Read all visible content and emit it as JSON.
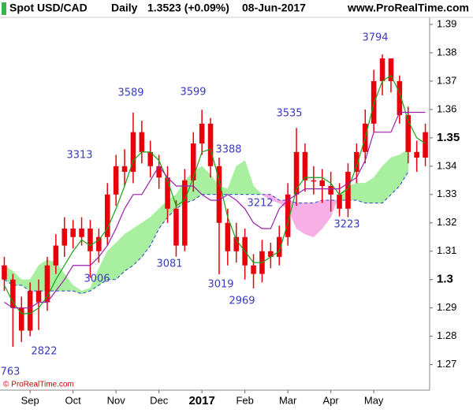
{
  "chart_data": {
    "type": "candlestick",
    "title": "Spot USD/CAD",
    "period": "Daily",
    "price": "1.3523 (+0.09%)",
    "date": "08-Jun-2017",
    "source": "www.ProRealTime.com",
    "footer": "© ProRealTime.com",
    "categories": [
      null,
      null,
      null,
      "Sep",
      null,
      null,
      null,
      null,
      "Oct",
      null,
      null,
      null,
      null,
      "Nov",
      null,
      null,
      null,
      null,
      "Dec",
      null,
      null,
      null,
      null,
      "2017",
      null,
      null,
      null,
      null,
      "Feb",
      null,
      null,
      null,
      null,
      "Mar",
      null,
      null,
      null,
      null,
      "Apr",
      null,
      null,
      null,
      null,
      "May",
      null,
      null,
      null,
      null,
      null,
      null
    ],
    "open": [
      1.305,
      1.3,
      1.29,
      1.282,
      1.296,
      1.292,
      1.305,
      1.312,
      1.318,
      1.315,
      1.318,
      1.31,
      1.315,
      1.33,
      1.34,
      1.338,
      1.352,
      1.345,
      1.34,
      1.336,
      1.325,
      1.312,
      1.335,
      1.348,
      1.355,
      1.34,
      1.32,
      1.31,
      1.315,
      1.305,
      1.302,
      1.31,
      1.308,
      1.315,
      1.33,
      1.345,
      1.335,
      1.335,
      1.333,
      1.33,
      1.325,
      1.338,
      1.345,
      1.355,
      1.37,
      1.378,
      1.37,
      1.358,
      1.345,
      1.343
    ],
    "high": [
      1.308,
      1.302,
      1.294,
      1.299,
      1.3,
      1.308,
      1.316,
      1.322,
      1.321,
      1.322,
      1.321,
      1.318,
      1.334,
      1.344,
      1.346,
      1.3589,
      1.356,
      1.349,
      1.344,
      1.34,
      1.328,
      1.339,
      1.352,
      1.3599,
      1.357,
      1.343,
      1.325,
      1.32,
      1.318,
      1.309,
      1.314,
      1.313,
      1.319,
      1.334,
      1.3535,
      1.348,
      1.34,
      1.339,
      1.338,
      1.334,
      1.341,
      1.348,
      1.36,
      1.374,
      1.3794,
      1.377,
      1.372,
      1.361,
      1.349,
      1.355
    ],
    "low": [
      1.296,
      1.2763,
      1.278,
      1.28,
      1.2822,
      1.289,
      1.302,
      1.308,
      1.311,
      1.312,
      1.3006,
      1.306,
      1.312,
      1.326,
      1.333,
      1.334,
      1.341,
      1.336,
      1.332,
      1.32,
      1.3081,
      1.31,
      1.331,
      1.344,
      1.336,
      1.3019,
      1.305,
      1.306,
      1.3,
      1.2969,
      1.299,
      1.304,
      1.305,
      1.312,
      1.326,
      1.331,
      1.33,
      1.327,
      1.324,
      1.3223,
      1.322,
      1.334,
      1.341,
      1.352,
      1.365,
      1.366,
      1.355,
      1.341,
      1.338,
      1.34
    ],
    "close": [
      1.3,
      1.29,
      1.282,
      1.296,
      1.292,
      1.305,
      1.312,
      1.318,
      1.315,
      1.318,
      1.31,
      1.315,
      1.33,
      1.34,
      1.338,
      1.352,
      1.345,
      1.34,
      1.336,
      1.325,
      1.312,
      1.335,
      1.348,
      1.355,
      1.34,
      1.32,
      1.31,
      1.315,
      1.305,
      1.302,
      1.31,
      1.308,
      1.315,
      1.33,
      1.345,
      1.335,
      1.335,
      1.333,
      1.33,
      1.325,
      1.338,
      1.345,
      1.355,
      1.37,
      1.378,
      1.37,
      1.358,
      1.345,
      1.343,
      1.352
    ],
    "candle_color": "#e8000b",
    "lines": [
      {
        "color": "#1aa01a",
        "values": [
          1.298,
          1.292,
          1.288,
          1.288,
          1.29,
          1.294,
          1.3,
          1.305,
          1.31,
          1.314,
          1.312,
          1.314,
          1.318,
          1.325,
          1.333,
          1.342,
          1.345,
          1.345,
          1.342,
          1.335,
          1.326,
          1.328,
          1.336,
          1.345,
          1.346,
          1.335,
          1.322,
          1.314,
          1.31,
          1.306,
          1.306,
          1.308,
          1.31,
          1.32,
          1.332,
          1.336,
          1.336,
          1.336,
          1.334,
          1.33,
          1.332,
          1.34,
          1.35,
          1.362,
          1.37,
          1.372,
          1.366,
          1.356,
          1.35,
          1.348
        ]
      },
      {
        "color": "#9b1fa8",
        "values": [
          1.292,
          1.29,
          1.29,
          1.29,
          1.292,
          1.292,
          1.296,
          1.3,
          1.305,
          1.305,
          1.305,
          1.308,
          1.312,
          1.318,
          1.325,
          1.33,
          1.33,
          1.335,
          1.34,
          1.336,
          1.333,
          1.333,
          1.333,
          1.33,
          1.328,
          1.328,
          1.33,
          1.328,
          1.325,
          1.32,
          1.318,
          1.318,
          1.325,
          1.328,
          1.33,
          1.332,
          1.332,
          1.332,
          1.332,
          1.332,
          1.334,
          1.336,
          1.342,
          1.352,
          1.352,
          1.352,
          1.359,
          1.359,
          1.359,
          1.359
        ]
      }
    ],
    "cloud": {
      "span_a": [
        1.305,
        1.303,
        1.3,
        1.3,
        1.305,
        1.307,
        1.306,
        1.302,
        1.298,
        1.296,
        1.297,
        1.304,
        1.31,
        1.313,
        1.316,
        1.318,
        1.32,
        1.322,
        1.325,
        1.328,
        1.33,
        1.335,
        1.338,
        1.34,
        1.337,
        1.333,
        1.332,
        1.34,
        1.342,
        1.333,
        1.33,
        1.328,
        1.327,
        1.325,
        1.318,
        1.316,
        1.315,
        1.318,
        1.322,
        1.33,
        1.333,
        1.334,
        1.334,
        1.336,
        1.34,
        1.343,
        1.344,
        1.346,
        null,
        null
      ],
      "span_b": [
        1.3,
        1.298,
        1.298,
        1.296,
        1.296,
        1.296,
        1.296,
        1.296,
        1.296,
        1.295,
        1.296,
        1.298,
        1.3,
        1.3,
        1.303,
        1.305,
        1.308,
        1.312,
        1.318,
        1.322,
        1.325,
        1.327,
        1.328,
        1.33,
        1.33,
        1.33,
        1.33,
        1.33,
        1.33,
        1.33,
        1.33,
        1.33,
        1.328,
        1.328,
        1.327,
        1.327,
        1.327,
        1.328,
        1.328,
        1.328,
        1.328,
        1.328,
        1.327,
        1.327,
        1.327,
        1.33,
        1.333,
        1.338,
        null,
        null
      ],
      "up_color": "#a8f0a0",
      "down_color": "#f7b0e6",
      "span_b_color": "#2a3fd0"
    },
    "annotations": [
      "3794",
      "3589",
      "3599",
      "3535",
      "3313",
      "3388",
      "3212",
      "3223",
      "3081",
      "3006",
      "3019",
      "2969",
      "2822",
      "763"
    ],
    "annotation_color": "#3a3ac0",
    "ylim": [
      1.261,
      1.3925
    ],
    "yticks": [
      1.27,
      1.28,
      1.29,
      1.3,
      1.31,
      1.32,
      1.33,
      1.34,
      1.35,
      1.36,
      1.37,
      1.38,
      1.39
    ]
  }
}
